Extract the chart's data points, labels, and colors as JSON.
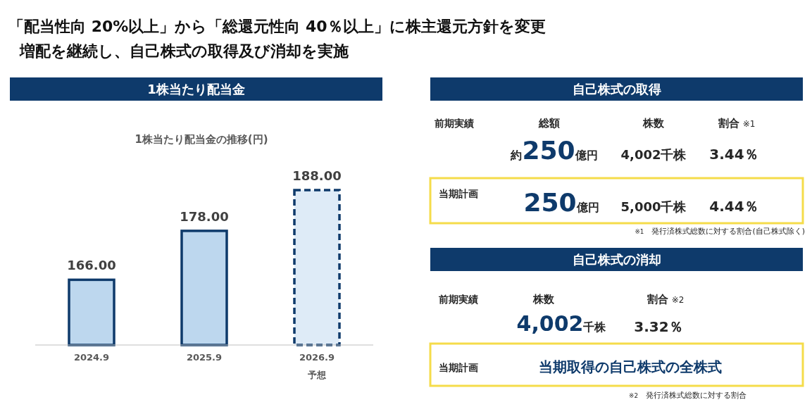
{
  "chart_data": [
    {
      "type": "other",
      "title": "「配当性向 20%以上」から「総還元性向 40％以上」に株主還元方針を変更",
      "subtitle": "増配を継続し、自己株式の取得及び消却を実施"
    },
    {
      "type": "bar",
      "title": "1株当たり配当金",
      "subtitle": "1株当たり配当金の推移(円)",
      "categories": [
        "2024.9",
        "2025.9",
        "2026.9\n予想"
      ],
      "ylim": [
        150,
        188
      ],
      "series": [
        {
          "color": "#bdd7ee",
          "values": [
            166,
            178,
            null
          ],
          "value_labels": [
            "166.00",
            "178.00",
            null
          ],
          "line_style": "solid"
        },
        {
          "color": "#deebf7",
          "values": [
            null,
            null,
            188
          ],
          "value_labels": [
            null,
            null,
            "188.00"
          ],
          "line_style": "dashed"
        }
      ]
    },
    {
      "type": "other",
      "title": "自己株式の取得",
      "annotations": [
        "前期実績",
        "総額",
        "株数",
        "割合 ※1",
        "約250億円",
        "4,002千株",
        "3.44％",
        "当期計画",
        "250億円",
        "5,000千株",
        "4.44％",
        "※1　発行済株式総数に対する割合(自己株式除く)"
      ]
    },
    {
      "type": "other",
      "title": "自己株式の消却",
      "annotations": [
        "前期実績",
        "株数",
        "割合 ※2",
        "4,002千株",
        "3.32％",
        "当期計画",
        "当期取得の自己株式の全株式",
        "※2　発行済株式総数に対する割合"
      ]
    }
  ]
}
